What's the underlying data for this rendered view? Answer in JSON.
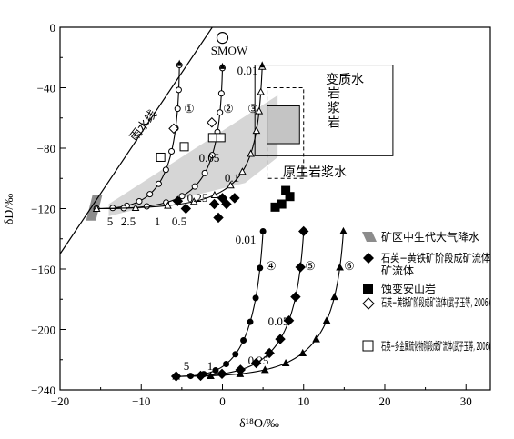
{
  "chart_data": {
    "type": "scatter",
    "xlabel": "δ¹⁸O/‰",
    "ylabel": "δD/‰",
    "xlim": [
      -20,
      33
    ],
    "ylim": [
      -240,
      0
    ],
    "x_ticks": [
      "−20",
      "−10",
      "0",
      "10",
      "20",
      "30"
    ],
    "y_ticks": [
      "0",
      "−40",
      "−80",
      "−120",
      "−160",
      "−200",
      "−240"
    ],
    "grid": false,
    "legend_position": "right",
    "legend": [
      "矿区中生代大气降水",
      "石英−黄铁矿阶段成矿流体",
      "蚀变安山岩",
      "石英−黄铁矿阶段成矿流体(武子玉等, 2006)",
      "石英−多金属硫化物阶段成矿流体(武子玉等, 2006)"
    ],
    "annotations": {
      "smow": "SMOW",
      "meteoric_line": "雨水线",
      "metamorphic_water": "变质水",
      "magmatic_water": "岩浆岩",
      "primary_magmatic_water": "原生岩浆水",
      "curve_labels": [
        "①",
        "②",
        "③",
        "④",
        "⑤",
        "⑥"
      ],
      "ratio_labels_upper": [
        "5",
        "2.5",
        "1",
        "0.5",
        "0.25",
        "0.1",
        "0.05",
        "0.01"
      ],
      "ratio_labels_lower": [
        "5",
        "1",
        "0.25",
        "0.05",
        "0.01"
      ]
    },
    "meteoric_water_line": [
      [
        -22,
        -166
      ],
      [
        2.5,
        30
      ]
    ],
    "smow_point": [
      0,
      -7
    ],
    "regions": {
      "metamorphic": {
        "x": [
          4,
          21
        ],
        "y": [
          -85,
          -25
        ]
      },
      "magmatic": {
        "x": [
          5.5,
          10
        ],
        "y": [
          -100,
          -40
        ]
      },
      "primary_magmatic": {
        "x": [
          5.5,
          9.5
        ],
        "y": [
          -77,
          -52
        ]
      },
      "mesozoic_meteoric": {
        "x": [
          -16.8,
          -14.8
        ],
        "y": [
          -128,
          -111
        ]
      },
      "mixing_band": [
        [
          -14,
          -117
        ],
        [
          -14,
          -125
        ],
        [
          2.8,
          -103
        ],
        [
          6.8,
          -86
        ],
        [
          6.8,
          -45
        ]
      ]
    },
    "series": [
      {
        "name": "石英−黄铁矿阶段成矿流体",
        "marker": "diamond-filled",
        "points": [
          [
            -5.5,
            -115
          ],
          [
            -4.5,
            -120
          ],
          [
            -1,
            -117
          ],
          [
            -0.5,
            -126
          ],
          [
            0,
            -113
          ],
          [
            0.5,
            -117
          ],
          [
            1.5,
            -113
          ]
        ]
      },
      {
        "name": "蚀变安山岩",
        "marker": "square-filled",
        "points": [
          [
            6.5,
            -119
          ],
          [
            7.3,
            -117
          ],
          [
            7.8,
            -108
          ],
          [
            8.3,
            -112
          ]
        ]
      },
      {
        "name": "石英−黄铁矿阶段成矿流体(武子玉等, 2006)",
        "marker": "diamond-open",
        "points": [
          [
            -6,
            -67
          ],
          [
            -1.3,
            -63
          ]
        ]
      },
      {
        "name": "石英−多金属硫化物阶段成矿流体(武子玉等, 2006)",
        "marker": "square-open",
        "points": [
          [
            -7.6,
            -86
          ],
          [
            -4.7,
            -79
          ],
          [
            -1.2,
            -73
          ],
          [
            -0.2,
            -73
          ]
        ]
      }
    ],
    "curves": [
      {
        "label": "①",
        "marker": "circle-open",
        "line": "cubic",
        "pts": [
          [
            -15.5,
            -120
          ],
          [
            -8.5,
            -120
          ],
          [
            -5.5,
            -108
          ],
          [
            -5.3,
            -25
          ]
        ],
        "markers_t": [
          0,
          0.1,
          0.2,
          0.3,
          0.4,
          0.5,
          0.6,
          0.7,
          0.8,
          0.87,
          0.93,
          1
        ]
      },
      {
        "label": "②",
        "marker": "circle-open",
        "line": "cubic",
        "pts": [
          [
            -15.5,
            -120
          ],
          [
            -3.5,
            -120
          ],
          [
            -0.4,
            -112
          ],
          [
            0,
            -27
          ]
        ],
        "markers_t": [
          0,
          0.1,
          0.2,
          0.3,
          0.4,
          0.5,
          0.6,
          0.7,
          0.8,
          0.87,
          0.93,
          1
        ]
      },
      {
        "label": "③",
        "marker": "triangle-open",
        "line": "cubic",
        "pts": [
          [
            -15.5,
            -120
          ],
          [
            2,
            -119
          ],
          [
            4.2,
            -111
          ],
          [
            4.9,
            -26
          ]
        ],
        "markers_t": [
          0,
          0.1,
          0.2,
          0.3,
          0.4,
          0.5,
          0.6,
          0.7,
          0.8,
          0.87,
          0.93,
          1
        ]
      },
      {
        "label": "④",
        "marker": "circle-filled",
        "line": "cubic",
        "pts": [
          [
            -5.7,
            -231
          ],
          [
            0.5,
            -231
          ],
          [
            4,
            -224
          ],
          [
            5,
            -135
          ]
        ],
        "markers_t": [
          0,
          0.1,
          0.2,
          0.3,
          0.4,
          0.5,
          0.6,
          0.7,
          0.8,
          0.9,
          1
        ]
      },
      {
        "label": "⑤",
        "marker": "diamond-filled",
        "line": "cubic",
        "pts": [
          [
            -5.7,
            -231
          ],
          [
            5,
            -231
          ],
          [
            9,
            -222
          ],
          [
            10,
            -135
          ]
        ],
        "markers_t": [
          0,
          0.1,
          0.2,
          0.3,
          0.4,
          0.5,
          0.6,
          0.7,
          0.8,
          0.9,
          1
        ]
      },
      {
        "label": "⑥",
        "marker": "triangle-filled",
        "line": "cubic",
        "pts": [
          [
            -5.7,
            -231
          ],
          [
            9.5,
            -231
          ],
          [
            13.8,
            -222
          ],
          [
            14.9,
            -135
          ]
        ],
        "markers_t": [
          0,
          0.1,
          0.2,
          0.3,
          0.4,
          0.5,
          0.6,
          0.7,
          0.8,
          0.9,
          1
        ]
      }
    ]
  }
}
